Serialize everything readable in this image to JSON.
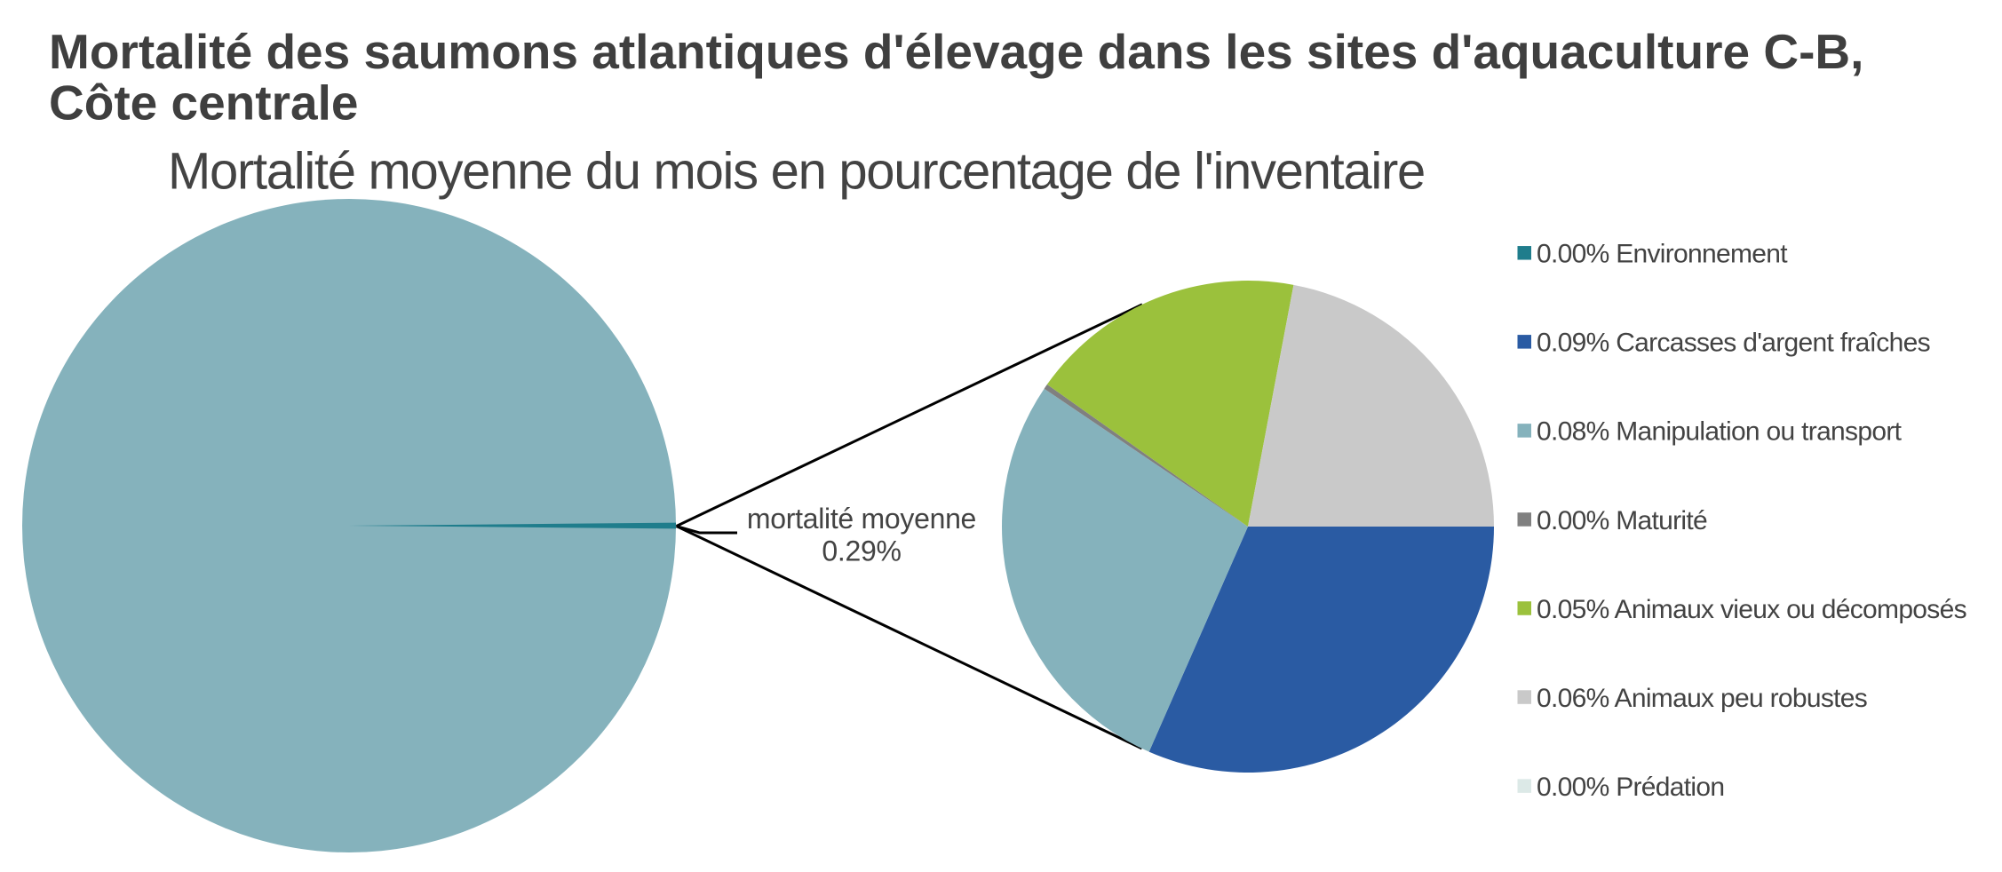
{
  "title": {
    "text": "Mortalité des saumons atlantiques d'élevage dans les sites d'aquaculture C-B, Côte centrale",
    "line1": "Mortalité des saumons atlantiques d'élevage dans les sites d'aquaculture C-B,",
    "line2": "Côte centrale"
  },
  "subtitle": "Mortalité moyenne du mois en pourcentage de l'inventaire",
  "callout": {
    "line1": "mortalité moyenne",
    "line2": "0.29%"
  },
  "colors": {
    "background": "#ffffff",
    "text": "#434343",
    "title": "#3f3f3f",
    "connector": "#000000",
    "inventory": "#85b2bc",
    "mortality": "#1f7d8c"
  },
  "chart_data": {
    "type": "pie",
    "variant": "pie-of-pie",
    "title": "Mortalité des saumons atlantiques d'élevage dans les sites d'aquaculture C-B, Côte centrale",
    "subtitle": "Mortalité moyenne du mois en pourcentage de l'inventaire",
    "legend_position": "right",
    "main_pie": {
      "slices": [
        {
          "name": "inventaire",
          "value_pct": 99.71,
          "color": "#85b2bc"
        },
        {
          "name": "mortalité moyenne",
          "value_pct": 0.29,
          "color": "#1f7d8c",
          "label": "mortalité moyenne 0.29%"
        }
      ],
      "start_deg": -0.5,
      "order": "mortality-wedge-centered-at-east"
    },
    "secondary_pie": {
      "slices": [
        {
          "name": "Environnement",
          "pct_label": "0.00%",
          "value": 0.0,
          "angle_deg": 0.0,
          "color": "#1f7d8c"
        },
        {
          "name": "Carcasses d'argent fraîches",
          "pct_label": "0.09%",
          "value": 0.09,
          "angle_deg": 113.7,
          "color": "#2a5ba3"
        },
        {
          "name": "Manipulation ou transport",
          "pct_label": "0.08%",
          "value": 0.08,
          "angle_deg": 100.4,
          "color": "#85b2bc"
        },
        {
          "name": "Maturité",
          "pct_label": "0.00%",
          "value": 0.0,
          "angle_deg": 1.2,
          "color": "#808080"
        },
        {
          "name": "Animaux vieux ou décomposés",
          "pct_label": "0.05%",
          "value": 0.05,
          "angle_deg": 65.4,
          "color": "#9bc13c"
        },
        {
          "name": "Animaux peu robustes",
          "pct_label": "0.06%",
          "value": 0.06,
          "angle_deg": 79.3,
          "color": "#c9c9c9"
        },
        {
          "name": "Prédation",
          "pct_label": "0.00%",
          "value": 0.0,
          "angle_deg": 0.0,
          "color": "#dce9e7"
        }
      ],
      "start_deg": 0
    },
    "legend": [
      {
        "label": "0.00% Environnement",
        "value_label": "0.00%",
        "name": "Environnement",
        "color": "#1f7d8c"
      },
      {
        "label": "0.09% Carcasses d'argent fraîches",
        "value_label": "0.09%",
        "name": "Carcasses d'argent fraîches",
        "color": "#2a5ba3"
      },
      {
        "label": "0.08% Manipulation ou transport",
        "value_label": "0.08%",
        "name": "Manipulation ou transport",
        "color": "#85b2bc"
      },
      {
        "label": "0.00% Maturité",
        "value_label": "0.00%",
        "name": "Maturité",
        "color": "#808080"
      },
      {
        "label": "0.05% Animaux vieux ou décomposés",
        "value_label": "0.05%",
        "name": "Animaux vieux ou décomposés",
        "color": "#9bc13c"
      },
      {
        "label": "0.06% Animaux peu robustes",
        "value_label": "0.06%",
        "name": "Animaux peu robustes",
        "color": "#c9c9c9"
      },
      {
        "label": "0.00% Prédation",
        "value_label": "0.00%",
        "name": "Prédation",
        "color": "#dce9e7"
      }
    ]
  }
}
